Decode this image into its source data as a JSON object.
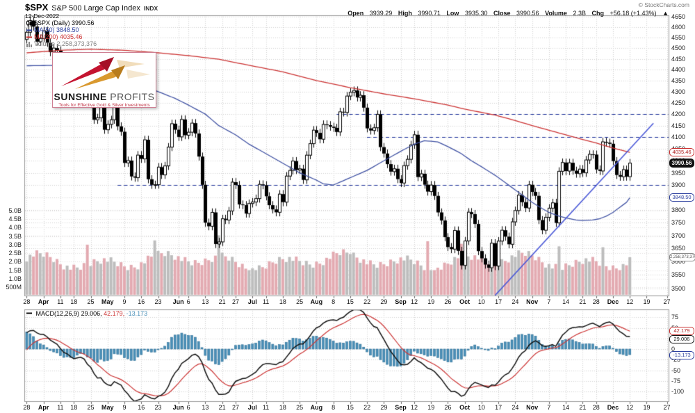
{
  "header": {
    "symbol": "$SPX",
    "name": "S&P 500 Large Cap Index",
    "exchange": "INDX",
    "date": "12-Dec-2022",
    "credit": "© StockCharts.com",
    "quote": {
      "open": {
        "label": "Open",
        "value": "3939.29"
      },
      "high": {
        "label": "High",
        "value": "3990.71"
      },
      "low": {
        "label": "Low",
        "value": "3935.30"
      },
      "close": {
        "label": "Close",
        "value": "3990.56"
      },
      "volume": {
        "label": "Volume",
        "value": "2.3B"
      },
      "chg": {
        "label": "Chg",
        "value": "+56.18 (+1.43%)",
        "arrow": "▲"
      }
    }
  },
  "legend": {
    "series": "$SPX (Daily) 3990.56",
    "ma50": "MA(50) 3848.50",
    "ma200": "MA(200) 4035.46",
    "volume": "Volume 2,258,373,376"
  },
  "macd_legend": {
    "name": "MACD(12,26,9)",
    "macd_value": "29.006,",
    "signal_value": "42.179,",
    "hist_value": "-13.173"
  },
  "badges": {
    "ma200": "4035.46",
    "price": "3990.56",
    "ma50": "3848.50",
    "volume": "2,258,373,376",
    "macd_signal": "42.179",
    "macd_line": "29.006",
    "macd_hist": "-13.173"
  },
  "logo": {
    "title_bold": "SUNSHINE",
    "title_light": "PROFITS",
    "tagline": "Tools for Effective Gold & Silver Investments"
  },
  "chart_data": {
    "type": "candlestick+volume+macd",
    "symbol": "$SPX",
    "timeframe": "Daily",
    "date_range": [
      "2022-03-28",
      "2022-12-12"
    ],
    "last_close": 3990.56,
    "price_axis": {
      "min": 3500,
      "max": 4650,
      "step": 50,
      "scale": "log"
    },
    "volume_axis": {
      "labels": [
        [
          "5.0B",
          5.0
        ],
        [
          "4.5B",
          4.5
        ],
        [
          "4.0B",
          4.0
        ],
        [
          "3.5B",
          3.5
        ],
        [
          "3.0B",
          3.0
        ],
        [
          "2.5B",
          2.5
        ],
        [
          "2.0B",
          2.0
        ],
        [
          "1.5B",
          1.5
        ],
        [
          "1.0B",
          1.0
        ],
        [
          "500M",
          0.5
        ]
      ]
    },
    "macd_axis": {
      "labels": [
        75,
        50,
        25,
        0,
        -25,
        -50,
        -75,
        -100
      ]
    },
    "x_ticks": [
      [
        "28",
        0
      ],
      [
        "Apr",
        5
      ],
      [
        "11",
        10
      ],
      [
        "18",
        14
      ],
      [
        "25",
        19
      ],
      [
        "May",
        24
      ],
      [
        "9",
        29
      ],
      [
        "16",
        34
      ],
      [
        "23",
        39
      ],
      [
        "Jun",
        45
      ],
      [
        "6",
        48
      ],
      [
        "13",
        53
      ],
      [
        "21",
        58
      ],
      [
        "27",
        62
      ],
      [
        "Jul",
        67
      ],
      [
        "11",
        71
      ],
      [
        "18",
        76
      ],
      [
        "25",
        81
      ],
      [
        "Aug",
        86
      ],
      [
        "8",
        91
      ],
      [
        "15",
        96
      ],
      [
        "22",
        101
      ],
      [
        "29",
        106
      ],
      [
        "Sep",
        111
      ],
      [
        "12",
        115
      ],
      [
        "19",
        120
      ],
      [
        "26",
        125
      ],
      [
        "Oct",
        130
      ],
      [
        "10",
        135
      ],
      [
        "17",
        140
      ],
      [
        "24",
        145
      ],
      [
        "Nov",
        150
      ],
      [
        "7",
        155
      ],
      [
        "14",
        160
      ],
      [
        "21",
        165
      ],
      [
        "28",
        169
      ],
      [
        "Dec",
        174
      ],
      [
        "12",
        179
      ],
      [
        "19",
        184
      ],
      [
        "27",
        190
      ]
    ],
    "months": [
      "Apr",
      "May",
      "Jun",
      "Jul",
      "Aug",
      "Sep",
      "Oct",
      "Nov",
      "Dec"
    ],
    "future_slots": 191,
    "first_open": 4541.11,
    "wick_pct": 0.0042,
    "closes": [
      4575.52,
      4631.6,
      4602.45,
      4530.41,
      4545.86,
      4582.64,
      4525.12,
      4481.15,
      4500.21,
      4488.28,
      4412.53,
      4397.45,
      4446.59,
      4392.59,
      4391.69,
      4462.21,
      4459.45,
      4393.66,
      4271.78,
      4296.12,
      4175.2,
      4183.96,
      4287.5,
      4131.93,
      4155.38,
      4175.48,
      4300.17,
      4146.87,
      4123.34,
      3991.24,
      4001.05,
      3935.18,
      3930.08,
      4023.89,
      4008.01,
      4088.85,
      3923.68,
      3900.79,
      3901.36,
      3973.75,
      3941.48,
      3978.73,
      4057.84,
      4158.24,
      4132.15,
      4101.23,
      4176.82,
      4108.54,
      4121.43,
      4160.68,
      4115.77,
      4017.82,
      3900.86,
      3749.63,
      3735.48,
      3789.99,
      3666.77,
      3674.84,
      3764.79,
      3759.89,
      3795.73,
      3911.74,
      3900.11,
      3821.55,
      3818.83,
      3785.38,
      3825.33,
      3831.39,
      3845.08,
      3902.62,
      3899.38,
      3854.43,
      3818.8,
      3801.78,
      3790.38,
      3863.16,
      3830.85,
      3936.69,
      3959.9,
      3998.95,
      3961.63,
      3966.84,
      3921.05,
      4023.61,
      4072.43,
      4130.29,
      4118.63,
      4091.19,
      4155.17,
      4151.94,
      4145.19,
      4140.06,
      4122.47,
      4210.24,
      4207.27,
      4280.15,
      4297.14,
      4305.2,
      4274.04,
      4283.74,
      4228.48,
      4137.99,
      4128.73,
      4140.77,
      4199.12,
      4057.66,
      4030.61,
      3986.16,
      3955.0,
      3966.85,
      3924.26,
      3908.19,
      3979.87,
      4006.18,
      4067.36,
      4110.41,
      3932.69,
      3946.01,
      3901.35,
      3873.33,
      3899.89,
      3855.93,
      3789.93,
      3757.99,
      3693.23,
      3655.04,
      3647.29,
      3719.04,
      3640.47,
      3585.62,
      3678.43,
      3790.93,
      3783.28,
      3744.52,
      3639.66,
      3612.39,
      3588.84,
      3577.03,
      3669.91,
      3583.07,
      3677.95,
      3719.98,
      3695.16,
      3665.78,
      3752.75,
      3797.34,
      3859.11,
      3830.6,
      3807.3,
      3901.06,
      3871.98,
      3856.1,
      3759.69,
      3719.89,
      3770.55,
      3806.8,
      3828.11,
      3748.57,
      3956.37,
      3992.93,
      3957.25,
      3991.73,
      3958.79,
      3946.56,
      3965.34,
      3949.94,
      4003.58,
      4027.26,
      4026.12,
      3963.94,
      3957.63,
      4080.11,
      4076.57,
      4071.7,
      3998.84,
      3941.26,
      3933.92,
      3963.51,
      3934.38,
      3990.56
    ],
    "ma50_points": [
      [
        0,
        4418
      ],
      [
        10,
        4420
      ],
      [
        14,
        4422
      ],
      [
        19,
        4405
      ],
      [
        24,
        4390
      ],
      [
        29,
        4360
      ],
      [
        34,
        4330
      ],
      [
        39,
        4300
      ],
      [
        44,
        4270
      ],
      [
        48,
        4240
      ],
      [
        53,
        4200
      ],
      [
        57,
        4150
      ],
      [
        62,
        4110
      ],
      [
        66,
        4070
      ],
      [
        71,
        4030
      ],
      [
        76,
        3990
      ],
      [
        81,
        3950
      ],
      [
        86,
        3920
      ],
      [
        88,
        3905
      ],
      [
        91,
        3900
      ],
      [
        96,
        3930
      ],
      [
        101,
        3960
      ],
      [
        106,
        4000
      ],
      [
        111,
        4040
      ],
      [
        115,
        4070
      ],
      [
        118,
        4085
      ],
      [
        122,
        4080
      ],
      [
        125,
        4060
      ],
      [
        129,
        4030
      ],
      [
        132,
        4000
      ],
      [
        135,
        3975
      ],
      [
        139,
        3940
      ],
      [
        142,
        3910
      ],
      [
        145,
        3880
      ],
      [
        148,
        3850
      ],
      [
        150,
        3830
      ],
      [
        153,
        3805
      ],
      [
        155,
        3790
      ],
      [
        158,
        3775
      ],
      [
        160,
        3768
      ],
      [
        163,
        3760
      ],
      [
        165,
        3758
      ],
      [
        168,
        3760
      ],
      [
        170,
        3765
      ],
      [
        172,
        3775
      ],
      [
        174,
        3790
      ],
      [
        176,
        3810
      ],
      [
        178,
        3830
      ],
      [
        179,
        3848.5
      ]
    ],
    "ma200_points": [
      [
        0,
        4478
      ],
      [
        10,
        4490
      ],
      [
        19,
        4495
      ],
      [
        29,
        4490
      ],
      [
        39,
        4478
      ],
      [
        48,
        4465
      ],
      [
        57,
        4448
      ],
      [
        66,
        4420
      ],
      [
        76,
        4390
      ],
      [
        86,
        4350
      ],
      [
        96,
        4318
      ],
      [
        106,
        4290
      ],
      [
        115,
        4268
      ],
      [
        125,
        4240
      ],
      [
        130,
        4222
      ],
      [
        139,
        4196
      ],
      [
        145,
        4172
      ],
      [
        150,
        4150
      ],
      [
        155,
        4130
      ],
      [
        160,
        4110
      ],
      [
        165,
        4090
      ],
      [
        169,
        4075
      ],
      [
        172,
        4062
      ],
      [
        175,
        4050
      ],
      [
        179,
        4035.5
      ]
    ],
    "sr_lines": [
      {
        "price": 4200,
        "from_idx": 92
      },
      {
        "price": 4100,
        "from_idx": 101
      },
      {
        "price": 3900,
        "from_idx": 27
      }
    ],
    "trendline": {
      "from": [
        139,
        3475
      ],
      "to": [
        186,
        4160
      ]
    },
    "macd": {
      "params": [
        12,
        26,
        9
      ],
      "seed_ema12": 4532,
      "seed_ema26": 4494,
      "seed_signal": -12,
      "last": {
        "macd": 29.006,
        "signal": 42.179,
        "hist": -13.173
      }
    },
    "volume_model": {
      "base": 2.05,
      "a1": 0.3,
      "f1": 0.35,
      "a2": 0.22,
      "f2": 0.13,
      "p2": 2,
      "noise": 0.5,
      "min": 1.5,
      "max": 3.6,
      "spikes": {
        "18": 3.0,
        "38": 3.25,
        "57": 3.55,
        "96": 2.45,
        "119": 3.2,
        "129": 3.05,
        "139": 2.95,
        "158": 2.9,
        "171": 2.85
      },
      "last_exact": 2.258
    },
    "colors": {
      "up": "#ffffff",
      "down": "#000000",
      "vol_up": "#bdbdbd",
      "vol_down": "#e3aab1",
      "ma50": "#3f51a3",
      "ma200": "#cc3333",
      "sr": "#1b2f9a",
      "trend": "#4a58d8",
      "macd_line": "#111111",
      "macd_signal": "#cc3333",
      "macd_hist": "#4a90b8",
      "macd_hist_edge": "#2e6f96",
      "grid": "#cfcfcf",
      "border": "#999999"
    }
  }
}
